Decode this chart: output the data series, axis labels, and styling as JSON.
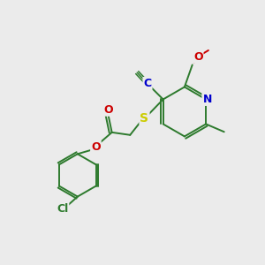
{
  "background_color": "#ebebeb",
  "bond_color": "#2d7a2d",
  "atom_colors": {
    "N": "#0000cc",
    "O": "#cc0000",
    "S": "#cccc00",
    "Cl": "#2d7a2d",
    "C_cyan": "#0000cc"
  },
  "figsize": [
    3.0,
    3.0
  ],
  "dpi": 100
}
